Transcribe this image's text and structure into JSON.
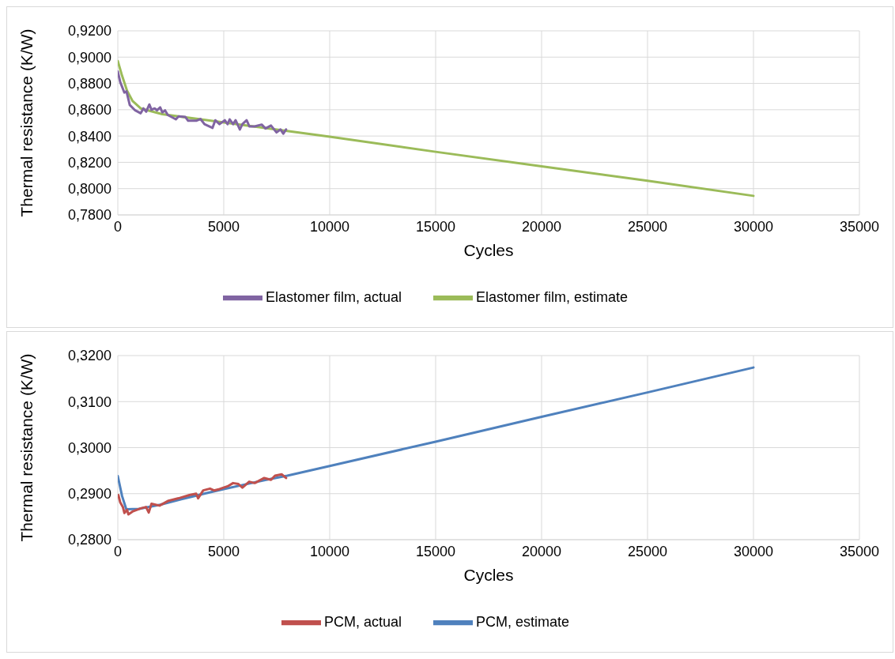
{
  "chart_data": [
    {
      "type": "line",
      "xlabel": "Cycles",
      "ylabel": "Thermal resistance (K/W)",
      "xlim": [
        0,
        35000
      ],
      "xticks": [
        0,
        5000,
        10000,
        15000,
        20000,
        25000,
        30000,
        35000
      ],
      "ylim": [
        0.78,
        0.92
      ],
      "yticks": [
        {
          "value": 0.78,
          "label": "0,7800"
        },
        {
          "value": 0.8,
          "label": "0,8000"
        },
        {
          "value": 0.82,
          "label": "0,8200"
        },
        {
          "value": 0.84,
          "label": "0,8400"
        },
        {
          "value": 0.86,
          "label": "0,8600"
        },
        {
          "value": 0.88,
          "label": "0,8800"
        },
        {
          "value": 0.9,
          "label": "0,9000"
        },
        {
          "value": 0.92,
          "label": "0,9200"
        }
      ],
      "grid": true,
      "legend": "bottom",
      "marker": "none",
      "line_style": "solid",
      "series": [
        {
          "name": "Elastomer film, estimate",
          "color": "#9bbb59",
          "x": [
            0,
            180,
            435,
            690,
            1080,
            2100,
            4670,
            7230,
            10000,
            15000,
            20000,
            25000,
            30000
          ],
          "values": [
            0.897,
            0.887,
            0.8745,
            0.8668,
            0.861,
            0.8566,
            0.851,
            0.8455,
            0.8395,
            0.828,
            0.817,
            0.806,
            0.7945
          ]
        },
        {
          "name": "Elastomer film, actual",
          "color": "#8064a2",
          "x": [
            0,
            115,
            310,
            410,
            565,
            820,
            1080,
            1210,
            1340,
            1490,
            1590,
            1740,
            1850,
            2000,
            2100,
            2230,
            2360,
            2740,
            2870,
            3190,
            3320,
            3700,
            3900,
            4090,
            4470,
            4600,
            4800,
            5050,
            5180,
            5280,
            5440,
            5560,
            5760,
            5880,
            6080,
            6210,
            6460,
            6790,
            6970,
            7230,
            7490,
            7680,
            7810,
            7940
          ],
          "values": [
            0.889,
            0.881,
            0.873,
            0.874,
            0.8636,
            0.8595,
            0.8573,
            0.861,
            0.8585,
            0.864,
            0.86,
            0.861,
            0.8595,
            0.8618,
            0.858,
            0.8595,
            0.856,
            0.8527,
            0.855,
            0.8545,
            0.8516,
            0.8516,
            0.853,
            0.849,
            0.8462,
            0.852,
            0.849,
            0.852,
            0.849,
            0.8527,
            0.849,
            0.852,
            0.845,
            0.849,
            0.852,
            0.8473,
            0.8473,
            0.8487,
            0.8457,
            0.848,
            0.8427,
            0.845,
            0.8418,
            0.845
          ]
        }
      ]
    },
    {
      "type": "line",
      "xlabel": "Cycles",
      "ylabel": "Thermal resistance (K/W)",
      "xlim": [
        0,
        35000
      ],
      "xticks": [
        0,
        5000,
        10000,
        15000,
        20000,
        25000,
        30000,
        35000
      ],
      "ylim": [
        0.28,
        0.32
      ],
      "yticks": [
        {
          "value": 0.28,
          "label": "0,2800"
        },
        {
          "value": 0.29,
          "label": "0,2900"
        },
        {
          "value": 0.3,
          "label": "0,3000"
        },
        {
          "value": 0.31,
          "label": "0,3100"
        },
        {
          "value": 0.32,
          "label": "0,3200"
        }
      ],
      "grid": true,
      "legend": "bottom",
      "marker": "none",
      "line_style": "solid",
      "series": [
        {
          "name": "PCM, estimate",
          "color": "#4f81bd",
          "x": [
            0,
            200,
            400,
            1000,
            2000,
            3000,
            4000,
            5000,
            6000,
            7000,
            8000,
            10000,
            15000,
            20000,
            25000,
            30000
          ],
          "values": [
            0.2938,
            0.2895,
            0.2866,
            0.2867,
            0.2876,
            0.2888,
            0.2899,
            0.291,
            0.292,
            0.293,
            0.2939,
            0.296,
            0.3013,
            0.3067,
            0.312,
            0.3174
          ]
        },
        {
          "name": "PCM, actual",
          "color": "#c0504d",
          "x": [
            25,
            115,
            240,
            310,
            435,
            500,
            690,
            1080,
            1330,
            1460,
            1590,
            1970,
            2360,
            2870,
            3380,
            3700,
            3790,
            4030,
            4350,
            4540,
            4800,
            5180,
            5440,
            5690,
            5880,
            6200,
            6460,
            6910,
            7230,
            7420,
            7740,
            7940
          ],
          "values": [
            0.2897,
            0.2881,
            0.2871,
            0.2858,
            0.2865,
            0.2855,
            0.2861,
            0.2868,
            0.2871,
            0.2859,
            0.2878,
            0.2874,
            0.2884,
            0.289,
            0.2897,
            0.29,
            0.289,
            0.2907,
            0.2911,
            0.2907,
            0.291,
            0.2916,
            0.2923,
            0.2921,
            0.2913,
            0.2926,
            0.2923,
            0.2934,
            0.293,
            0.2939,
            0.2942,
            0.2934
          ]
        }
      ]
    }
  ]
}
